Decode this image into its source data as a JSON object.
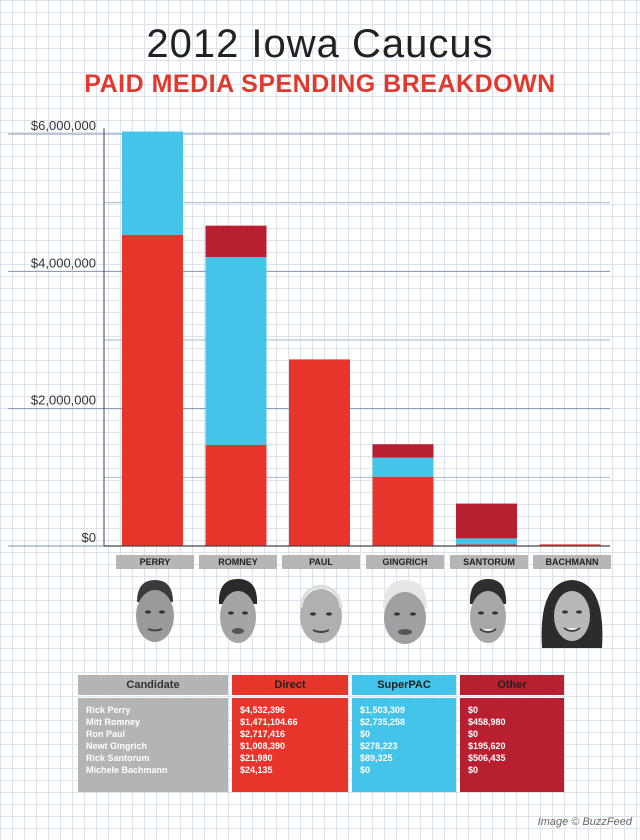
{
  "title": "2012 Iowa Caucus",
  "subtitle": "PAID MEDIA SPENDING BREAKDOWN",
  "credit": "Image © BuzzFeed",
  "colors": {
    "direct": "#e8352c",
    "superpac": "#43c4e8",
    "other": "#b81f30"
  },
  "chart_data": {
    "type": "bar",
    "stacked": true,
    "categories": [
      "PERRY",
      "ROMNEY",
      "PAUL",
      "GINGRICH",
      "SANTORUM",
      "BACHMANN"
    ],
    "series": [
      {
        "key": "direct",
        "values": [
          4532396,
          1471104.66,
          2717416,
          1008390,
          21980,
          24135
        ]
      },
      {
        "key": "superpac",
        "values": [
          1503309,
          2735258,
          0,
          278223,
          89325,
          0
        ]
      },
      {
        "key": "other",
        "values": [
          0,
          458980,
          0,
          195620,
          506435,
          0
        ]
      }
    ],
    "ylim": [
      0,
      6000000
    ],
    "y_ticks": [
      "$0",
      "$2,000,000",
      "$4,000,000",
      "$6,000,000"
    ],
    "y_tick_values": [
      0,
      2000000,
      4000000,
      6000000
    ],
    "grid": true
  },
  "table": {
    "headers": {
      "candidate": "Candidate",
      "direct": "Direct",
      "superpac": "SuperPAC",
      "other": "Other"
    },
    "rows": [
      {
        "candidate": "Rick Perry",
        "direct": "$4,532,396",
        "superpac": "$1,503,309",
        "other": "$0"
      },
      {
        "candidate": "Mitt Romney",
        "direct": "$1,471,104.66",
        "superpac": "$2,735,258",
        "other": "$458,980"
      },
      {
        "candidate": "Ron Paul",
        "direct": "$2,717,416",
        "superpac": "$0",
        "other": "$0"
      },
      {
        "candidate": "Newt Gingrich",
        "direct": "$1,008,390",
        "superpac": "$278,223",
        "other": "$195,620"
      },
      {
        "candidate": "Rick Santorum",
        "direct": "$21,980",
        "superpac": "$89,325",
        "other": "$506,435"
      },
      {
        "candidate": "Michele Bachmann",
        "direct": "$24,135",
        "superpac": "$0",
        "other": "$0"
      }
    ]
  }
}
